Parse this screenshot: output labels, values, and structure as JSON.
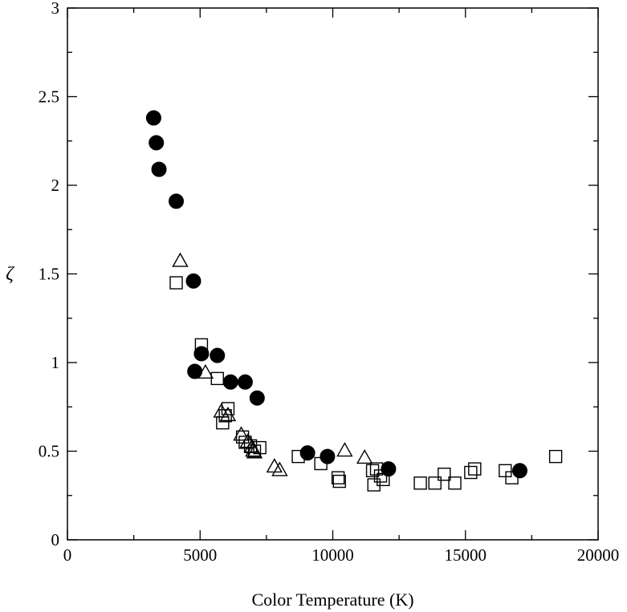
{
  "chart_data": {
    "type": "scatter",
    "title": "",
    "xlabel": "Color Temperature (K)",
    "ylabel": "ζ",
    "xlim": [
      0,
      20000
    ],
    "ylim": [
      0,
      3
    ],
    "xticks": [
      0,
      5000,
      10000,
      15000,
      20000
    ],
    "xtick_labels": [
      "0",
      "5000",
      "10000",
      "15000",
      "20000"
    ],
    "yticks": [
      0,
      0.5,
      1,
      1.5,
      2,
      2.5,
      3
    ],
    "ytick_labels": [
      "0",
      "0.5",
      "1",
      "1.5",
      "2",
      "2.5",
      "3"
    ],
    "grid": false,
    "legend": "none",
    "colors": {
      "marker": "#000000",
      "background": "#ffffff"
    },
    "series": [
      {
        "marker": "filled-circle",
        "points": [
          [
            3250,
            2.38
          ],
          [
            3350,
            2.24
          ],
          [
            3450,
            2.09
          ],
          [
            4100,
            1.91
          ],
          [
            4750,
            1.46
          ],
          [
            4800,
            0.95
          ],
          [
            5050,
            1.05
          ],
          [
            5650,
            1.04
          ],
          [
            6150,
            0.89
          ],
          [
            6700,
            0.89
          ],
          [
            7150,
            0.8
          ],
          [
            9050,
            0.49
          ],
          [
            9800,
            0.47
          ],
          [
            12100,
            0.4
          ],
          [
            17050,
            0.39
          ]
        ]
      },
      {
        "marker": "open-triangle",
        "points": [
          [
            4250,
            1.57
          ],
          [
            5200,
            0.94
          ],
          [
            5800,
            0.72
          ],
          [
            6050,
            0.7
          ],
          [
            6550,
            0.59
          ],
          [
            6800,
            0.55
          ],
          [
            6950,
            0.52
          ],
          [
            7000,
            0.5
          ],
          [
            7050,
            0.49
          ],
          [
            7800,
            0.41
          ],
          [
            8000,
            0.39
          ],
          [
            10450,
            0.5
          ],
          [
            11200,
            0.46
          ]
        ]
      },
      {
        "marker": "open-square",
        "points": [
          [
            4100,
            1.45
          ],
          [
            5050,
            1.1
          ],
          [
            5650,
            0.91
          ],
          [
            5850,
            0.66
          ],
          [
            5950,
            0.7
          ],
          [
            6050,
            0.74
          ],
          [
            6600,
            0.58
          ],
          [
            6700,
            0.55
          ],
          [
            6900,
            0.53
          ],
          [
            7050,
            0.5
          ],
          [
            7250,
            0.52
          ],
          [
            8700,
            0.47
          ],
          [
            9550,
            0.43
          ],
          [
            10200,
            0.35
          ],
          [
            10250,
            0.33
          ],
          [
            11500,
            0.39
          ],
          [
            11550,
            0.31
          ],
          [
            11650,
            0.4
          ],
          [
            11800,
            0.36
          ],
          [
            11900,
            0.34
          ],
          [
            13300,
            0.32
          ],
          [
            13850,
            0.32
          ],
          [
            14200,
            0.37
          ],
          [
            14600,
            0.32
          ],
          [
            15200,
            0.38
          ],
          [
            15350,
            0.4
          ],
          [
            16500,
            0.39
          ],
          [
            16750,
            0.35
          ],
          [
            18400,
            0.47
          ]
        ]
      }
    ]
  }
}
